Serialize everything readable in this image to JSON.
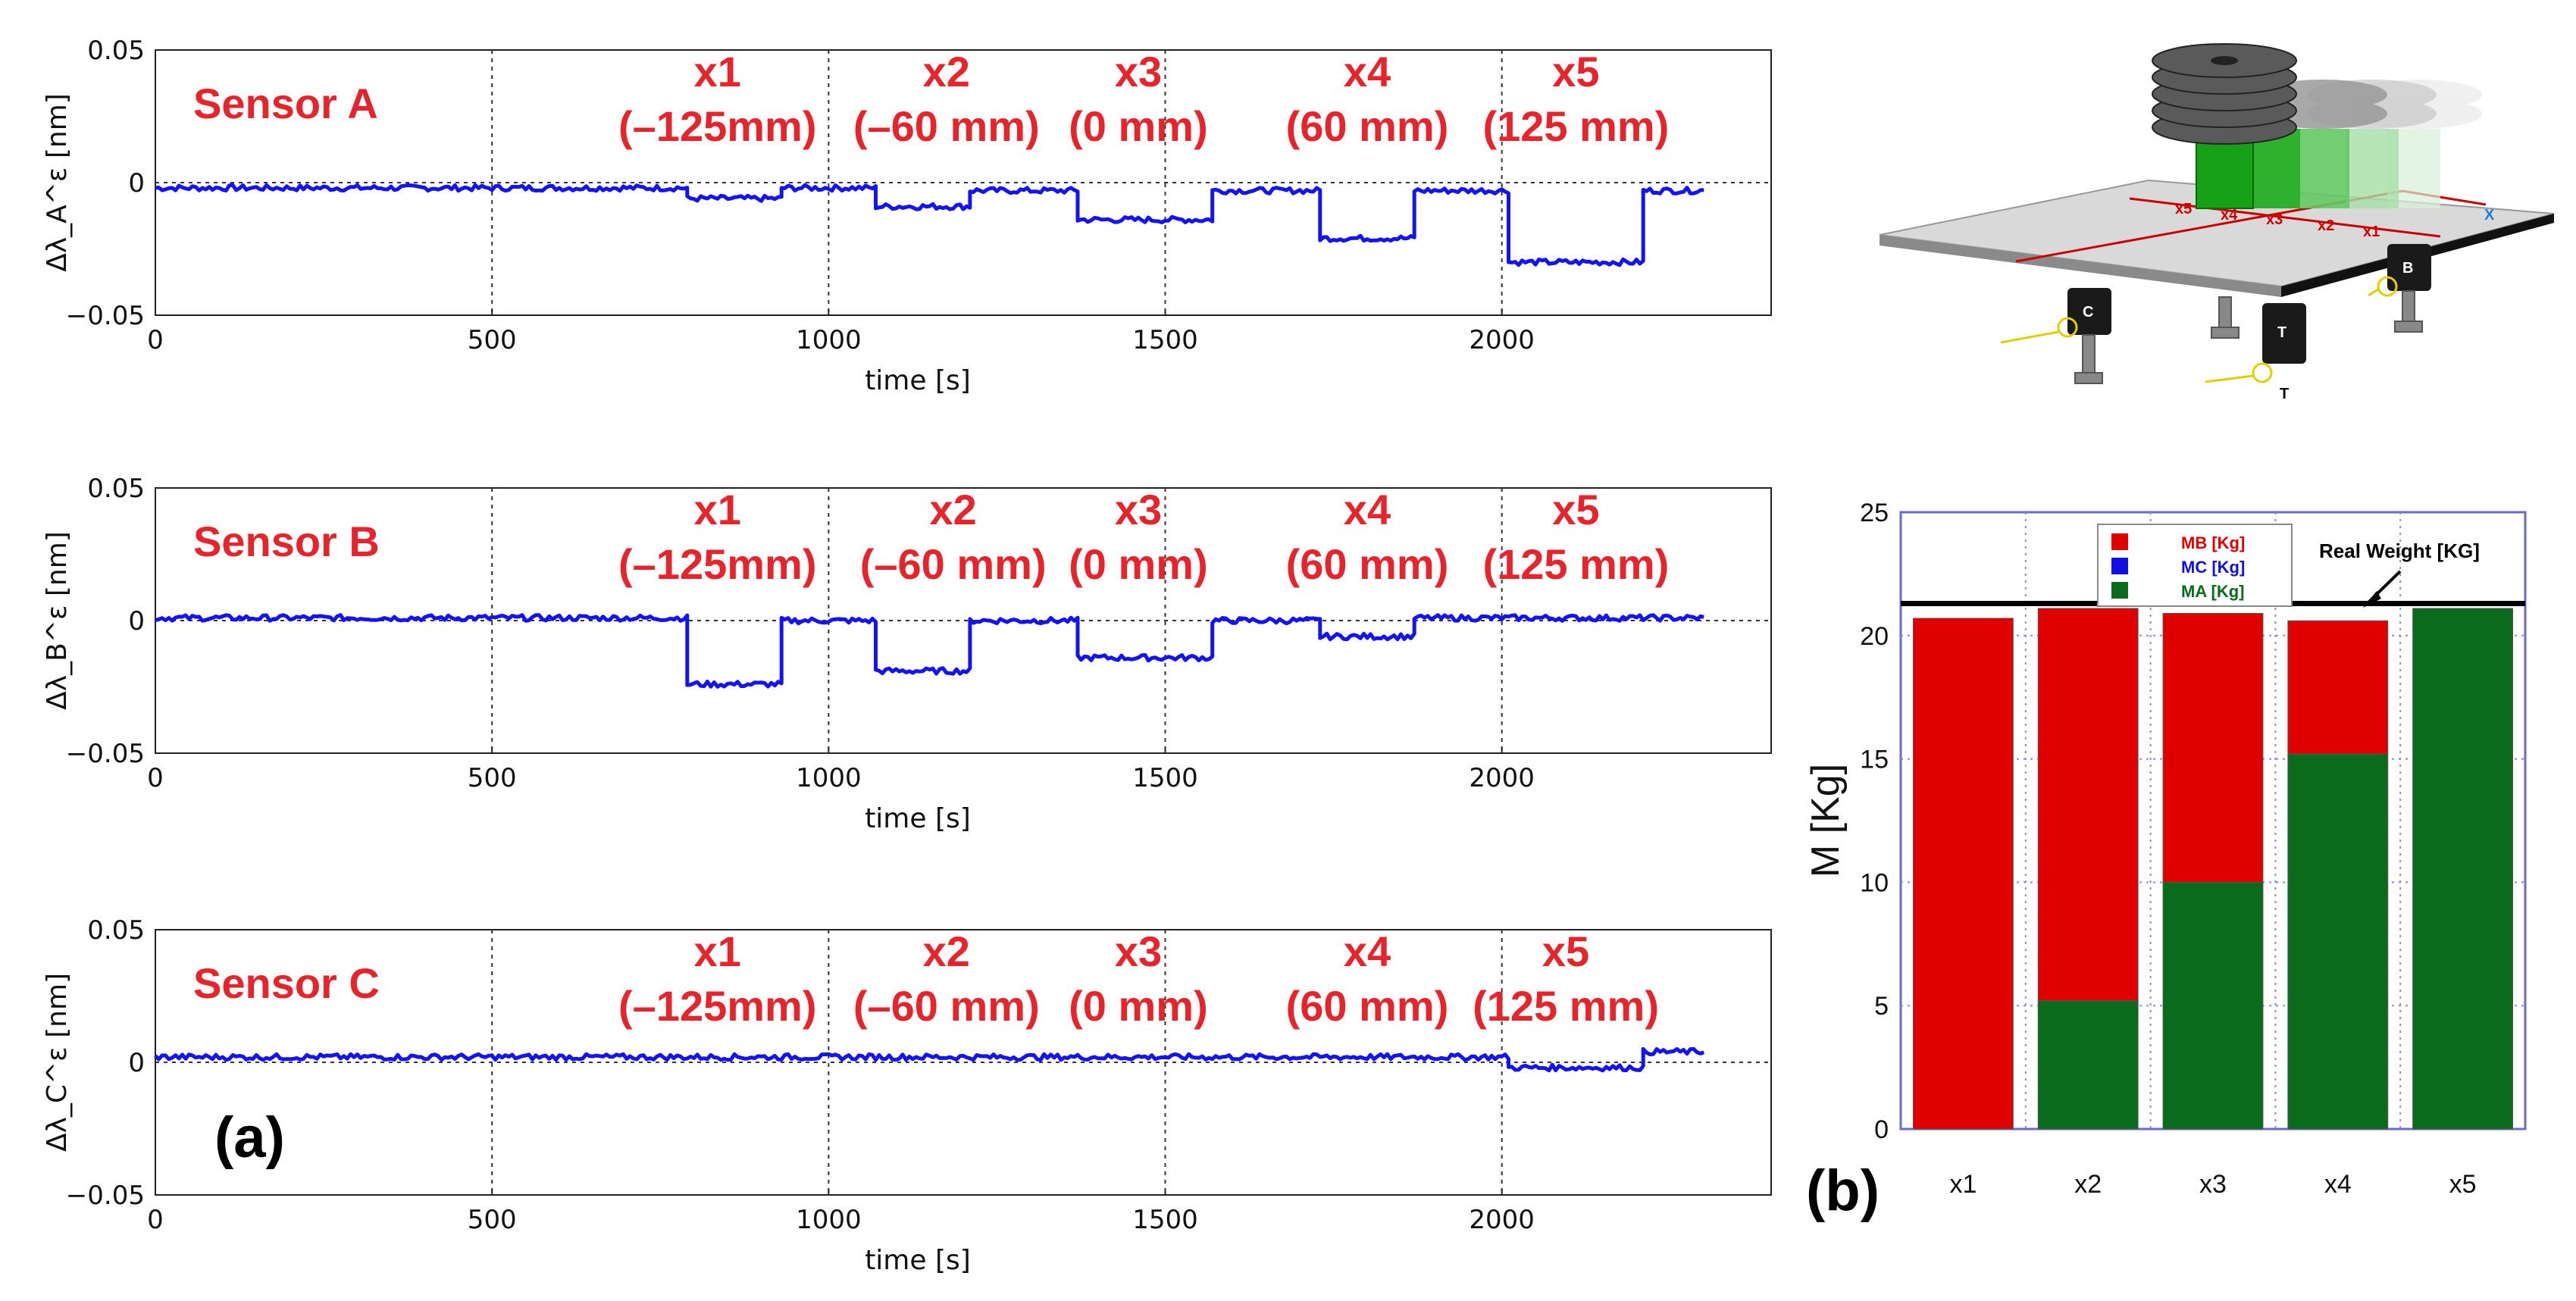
{
  "chart_data": [
    {
      "type": "line",
      "panel": "(a)",
      "title": "Sensor A",
      "xlabel": "time [s]",
      "ylabel": "Δλ_A^ε [nm]",
      "xlim": [
        0,
        2400
      ],
      "ylim": [
        -0.05,
        0.05
      ],
      "xticks": [
        "0",
        "500",
        "1000",
        "1500",
        "2000"
      ],
      "yticks": [
        "0.05",
        "0",
        "−0.05"
      ],
      "grid": "dotted",
      "baseline_end": 2300,
      "annotations": [
        {
          "label": "x1",
          "sub": "(–125mm)",
          "x": 835
        },
        {
          "label": "x2",
          "sub": "(–60 mm)",
          "x": 1175
        },
        {
          "label": "x3",
          "sub": "(0 mm)",
          "x": 1460
        },
        {
          "label": "x4",
          "sub": "(60 mm)",
          "x": 1800
        },
        {
          "label": "x5",
          "sub": "(125 mm)",
          "x": 2110
        }
      ],
      "segments": [
        {
          "t0": 0,
          "t1": 790,
          "v": -0.002
        },
        {
          "t0": 790,
          "t1": 930,
          "v": -0.006
        },
        {
          "t0": 930,
          "t1": 1070,
          "v": -0.002
        },
        {
          "t0": 1070,
          "t1": 1210,
          "v": -0.009
        },
        {
          "t0": 1210,
          "t1": 1370,
          "v": -0.003
        },
        {
          "t0": 1370,
          "t1": 1570,
          "v": -0.014
        },
        {
          "t0": 1570,
          "t1": 1730,
          "v": -0.003
        },
        {
          "t0": 1730,
          "t1": 1870,
          "v": -0.021
        },
        {
          "t0": 1870,
          "t1": 2010,
          "v": -0.003
        },
        {
          "t0": 2010,
          "t1": 2210,
          "v": -0.03
        },
        {
          "t0": 2210,
          "t1": 2300,
          "v": -0.003
        }
      ]
    },
    {
      "type": "line",
      "title": "Sensor B",
      "xlabel": "time [s]",
      "ylabel": "Δλ_B^ε [nm]",
      "xlim": [
        0,
        2400
      ],
      "ylim": [
        -0.05,
        0.05
      ],
      "xticks": [
        "0",
        "500",
        "1000",
        "1500",
        "2000"
      ],
      "yticks": [
        "0.05",
        "0",
        "−0.05"
      ],
      "grid": "dotted",
      "baseline_end": 2300,
      "annotations": [
        {
          "label": "x1",
          "sub": "(–125mm)",
          "x": 835
        },
        {
          "label": "x2",
          "sub": "(–60 mm)",
          "x": 1185
        },
        {
          "label": "x3",
          "sub": "(0 mm)",
          "x": 1460
        },
        {
          "label": "x4",
          "sub": "(60 mm)",
          "x": 1800
        },
        {
          "label": "x5",
          "sub": "(125 mm)",
          "x": 2110
        }
      ],
      "segments": [
        {
          "t0": 0,
          "t1": 790,
          "v": 0.001
        },
        {
          "t0": 790,
          "t1": 930,
          "v": -0.024
        },
        {
          "t0": 930,
          "t1": 1070,
          "v": 0.0
        },
        {
          "t0": 1070,
          "t1": 1210,
          "v": -0.019
        },
        {
          "t0": 1210,
          "t1": 1370,
          "v": 0.0
        },
        {
          "t0": 1370,
          "t1": 1570,
          "v": -0.014
        },
        {
          "t0": 1570,
          "t1": 1730,
          "v": 0.0
        },
        {
          "t0": 1730,
          "t1": 1870,
          "v": -0.006
        },
        {
          "t0": 1870,
          "t1": 2300,
          "v": 0.001
        }
      ]
    },
    {
      "type": "line",
      "title": "Sensor C",
      "xlabel": "time [s]",
      "ylabel": "Δλ_C^ε [nm]",
      "xlim": [
        0,
        2400
      ],
      "ylim": [
        -0.05,
        0.05
      ],
      "xticks": [
        "0",
        "500",
        "1000",
        "1500",
        "2000"
      ],
      "yticks": [
        "0.05",
        "0",
        "−0.05"
      ],
      "grid": "dotted",
      "baseline_end": 2300,
      "annotations": [
        {
          "label": "x1",
          "sub": "(–125mm)",
          "x": 835
        },
        {
          "label": "x2",
          "sub": "(–60 mm)",
          "x": 1175
        },
        {
          "label": "x3",
          "sub": "(0 mm)",
          "x": 1460
        },
        {
          "label": "x4",
          "sub": "(60 mm)",
          "x": 1800
        },
        {
          "label": "x5",
          "sub": "(125 mm)",
          "x": 2095
        }
      ],
      "segments": [
        {
          "t0": 0,
          "t1": 2010,
          "v": 0.002
        },
        {
          "t0": 2010,
          "t1": 2210,
          "v": -0.002
        },
        {
          "t0": 2210,
          "t1": 2300,
          "v": 0.004
        }
      ]
    },
    {
      "type": "bar",
      "panel": "(b)",
      "stacked": true,
      "categories": [
        "x1",
        "x2",
        "x3",
        "x4",
        "x5"
      ],
      "ylabel": "M [Kg]",
      "ylim": [
        0,
        25
      ],
      "yticks": [
        "0",
        "5",
        "10",
        "15",
        "20",
        "25"
      ],
      "legend": [
        {
          "name": "MB  [Kg]",
          "color": "#e00000"
        },
        {
          "name": "MC  [Kg]",
          "color": "#1010e0"
        },
        {
          "name": "MA  [Kg]",
          "color": "#0b6b1c"
        }
      ],
      "series": [
        {
          "name": "MA",
          "color": "#0b6b1c",
          "values": [
            0,
            5.2,
            10.0,
            15.2,
            21.1
          ]
        },
        {
          "name": "MB",
          "color": "#e00000",
          "values": [
            20.7,
            15.9,
            10.9,
            5.4,
            0
          ]
        },
        {
          "name": "MC",
          "color": "#1010e0",
          "values": [
            0,
            0,
            0,
            0,
            0
          ]
        }
      ],
      "reference_line": {
        "label": "Real Weight [KG]",
        "value": 21.3
      }
    }
  ],
  "illustration": {
    "axis_label": "X",
    "positions": [
      "x5",
      "x4",
      "x3",
      "x2",
      "x1"
    ],
    "sensors": [
      "C",
      "B",
      "T",
      "T"
    ]
  }
}
